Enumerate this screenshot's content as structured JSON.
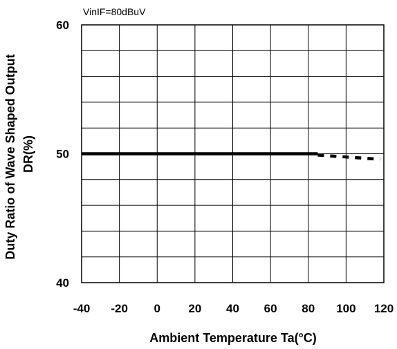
{
  "chart_data": {
    "type": "line",
    "annotation": "VinIF=80dBuV",
    "xlabel": "Ambient Temperature Ta(°C)",
    "ylabel_line1": "Duty Ratio of Wave Shaped Output",
    "ylabel_line2": "DR(%)",
    "xlim": [
      -40,
      120
    ],
    "ylim": [
      40,
      60
    ],
    "x_ticks": [
      "-40",
      "-20",
      "0",
      "20",
      "40",
      "60",
      "80",
      "100",
      "120"
    ],
    "y_ticks": [
      "40",
      "50",
      "60"
    ],
    "grid": true,
    "series": [
      {
        "style": "solid",
        "x": [
          -40,
          -20,
          0,
          20,
          40,
          60,
          80,
          85
        ],
        "y": [
          50.0,
          50.0,
          50.0,
          50.0,
          50.0,
          50.0,
          50.0,
          50.0
        ]
      },
      {
        "style": "dashed",
        "x": [
          85,
          95,
          105,
          115,
          118
        ],
        "y": [
          49.9,
          49.8,
          49.7,
          49.6,
          49.6
        ]
      }
    ]
  }
}
